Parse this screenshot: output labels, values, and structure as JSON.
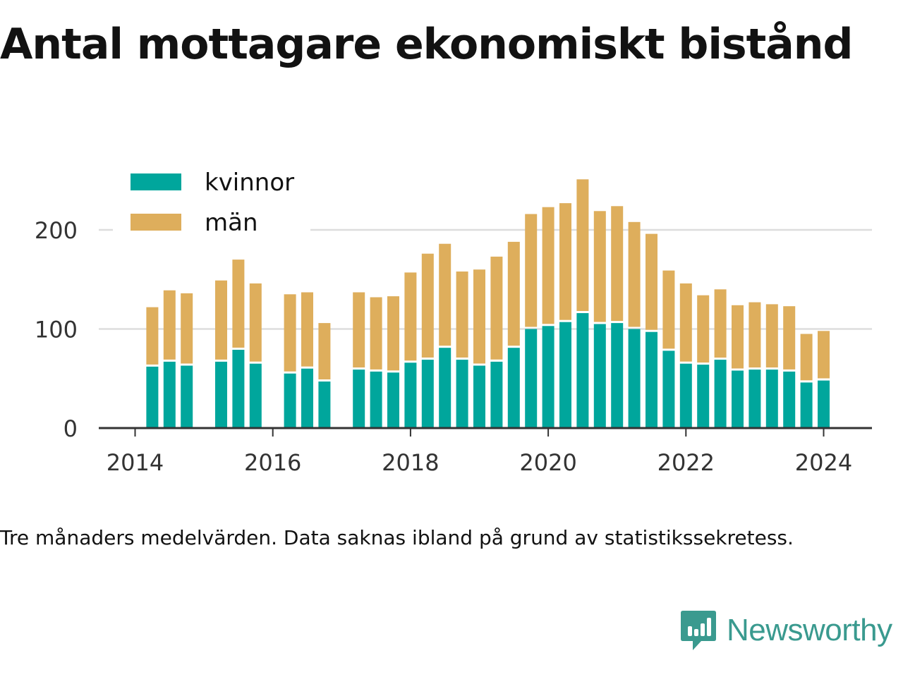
{
  "title": "Antal mottagare ekonomiskt bistånd",
  "note": "Tre månaders medelvärden. Data saknas ibland på grund av statistikssekretess.",
  "brand": {
    "name": "Newsworthy",
    "icon": "newsworthy-logo-icon"
  },
  "colors": {
    "kvinnor": "#00a69c",
    "man": "#deae5c",
    "grid": "#dddddd",
    "axis": "#333333",
    "text": "#121212",
    "brand": "#3a9a8f"
  },
  "chart_data": {
    "type": "bar",
    "stacked": true,
    "x_ticks": [
      "2014",
      "2016",
      "2018",
      "2020",
      "2022",
      "2024"
    ],
    "y_ticks": [
      "0",
      "100",
      "200"
    ],
    "ylim": [
      0,
      260
    ],
    "grid": true,
    "legend_position": "top-left",
    "series": [
      {
        "name": "kvinnor",
        "values": [
          62,
          67,
          63,
          67,
          79,
          65,
          55,
          60,
          47,
          59,
          57,
          56,
          66,
          69,
          81,
          69,
          63,
          67,
          81,
          100,
          103,
          107,
          116,
          105,
          106,
          100,
          97,
          78,
          65,
          64,
          69,
          58,
          59,
          59,
          57,
          46,
          48
        ]
      },
      {
        "name": "män",
        "values": [
          60,
          72,
          73,
          82,
          91,
          81,
          80,
          77,
          59,
          78,
          75,
          77,
          91,
          107,
          105,
          89,
          97,
          106,
          107,
          116,
          120,
          120,
          135,
          114,
          118,
          108,
          99,
          81,
          81,
          70,
          71,
          66,
          68,
          66,
          66,
          49,
          50
        ]
      }
    ],
    "periods": [
      "2014-04",
      "2014-07",
      "2014-10",
      "2015-04",
      "2015-07",
      "2015-10",
      "2016-04",
      "2016-07",
      "2016-10",
      "2017-04",
      "2017-07",
      "2017-10",
      "2018-01",
      "2018-04",
      "2018-07",
      "2018-10",
      "2019-01",
      "2019-04",
      "2019-07",
      "2019-10",
      "2020-01",
      "2020-04",
      "2020-07",
      "2020-10",
      "2021-01",
      "2021-04",
      "2021-07",
      "2021-10",
      "2022-01",
      "2022-04",
      "2022-07",
      "2022-10",
      "2023-01",
      "2023-04",
      "2023-07",
      "2023-10",
      "2024-01"
    ]
  }
}
